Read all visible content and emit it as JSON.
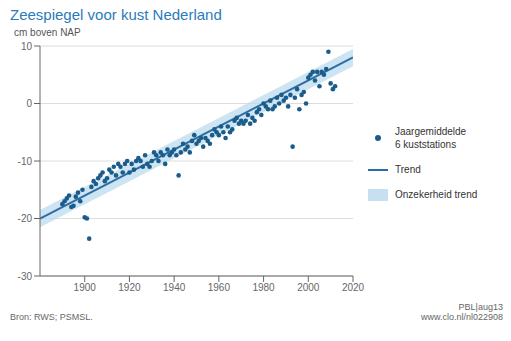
{
  "chart_data": {
    "type": "scatter",
    "title": "Zeespiegel voor kust Nederland",
    "ylabel": "cm boven NAP",
    "xlim": [
      1880,
      2020
    ],
    "ylim": [
      -30,
      10
    ],
    "xticks": [
      1900,
      1920,
      1940,
      1960,
      1980,
      2000,
      2020
    ],
    "yticks": [
      -30,
      -20,
      -10,
      0,
      10
    ],
    "grid": true,
    "legend": "right",
    "annotations": [
      "Bron: RWS; PSMSL.",
      "PBL|aug13\nwww.clo.nl/nl022908"
    ],
    "series": [
      {
        "name": "Jaargemiddelde\n6 kuststations",
        "type": "scatter",
        "color": "#1a5c8a",
        "x": [
          1890,
          1891,
          1892,
          1893,
          1894,
          1895,
          1896,
          1897,
          1898,
          1899,
          1900,
          1901,
          1902,
          1903,
          1904,
          1905,
          1906,
          1907,
          1908,
          1909,
          1910,
          1911,
          1912,
          1913,
          1914,
          1915,
          1916,
          1917,
          1918,
          1919,
          1920,
          1921,
          1922,
          1923,
          1924,
          1925,
          1926,
          1927,
          1928,
          1929,
          1930,
          1931,
          1932,
          1933,
          1934,
          1935,
          1936,
          1937,
          1938,
          1939,
          1940,
          1941,
          1942,
          1943,
          1944,
          1945,
          1946,
          1947,
          1948,
          1949,
          1950,
          1951,
          1952,
          1953,
          1954,
          1955,
          1956,
          1957,
          1958,
          1959,
          1960,
          1961,
          1962,
          1963,
          1964,
          1965,
          1966,
          1967,
          1968,
          1969,
          1970,
          1971,
          1972,
          1973,
          1974,
          1975,
          1976,
          1977,
          1978,
          1979,
          1980,
          1981,
          1982,
          1983,
          1984,
          1985,
          1986,
          1987,
          1988,
          1989,
          1990,
          1991,
          1992,
          1993,
          1994,
          1995,
          1996,
          1997,
          1998,
          1999,
          2000,
          2001,
          2002,
          2003,
          2004,
          2005,
          2006,
          2007,
          2008,
          2009,
          2010,
          2011,
          2012
        ],
        "values": [
          -17.5,
          -17.0,
          -16.5,
          -16.0,
          -18.0,
          -17.8,
          -16.2,
          -15.5,
          -17.0,
          -15.0,
          -19.8,
          -20.0,
          -23.5,
          -14.5,
          -13.5,
          -14.0,
          -13.0,
          -12.5,
          -12.0,
          -13.5,
          -13.0,
          -11.5,
          -12.0,
          -11.0,
          -12.5,
          -10.5,
          -11.0,
          -12.0,
          -10.5,
          -10.0,
          -12.0,
          -10.5,
          -11.5,
          -10.0,
          -9.5,
          -10.0,
          -11.0,
          -9.0,
          -10.5,
          -11.0,
          -10.0,
          -8.5,
          -9.0,
          -10.0,
          -8.5,
          -9.0,
          -10.5,
          -8.0,
          -9.0,
          -8.5,
          -8.0,
          -9.0,
          -12.5,
          -8.5,
          -7.0,
          -8.0,
          -7.5,
          -8.5,
          -6.5,
          -5.5,
          -7.0,
          -6.5,
          -6.0,
          -7.5,
          -6.0,
          -6.5,
          -7.0,
          -5.5,
          -4.5,
          -5.0,
          -5.5,
          -4.0,
          -5.0,
          -6.0,
          -4.0,
          -5.0,
          -4.5,
          -3.0,
          -2.5,
          -3.5,
          -3.0,
          -3.5,
          -3.0,
          -2.0,
          -3.5,
          -2.5,
          -3.0,
          -1.5,
          -1.0,
          -2.0,
          0.0,
          -0.5,
          -1.0,
          0.5,
          -1.0,
          -0.5,
          1.0,
          0.0,
          1.5,
          0.5,
          1.0,
          -0.5,
          1.5,
          -7.5,
          1.0,
          2.5,
          -1.0,
          1.5,
          2.0,
          0.0,
          4.5,
          5.0,
          5.5,
          4.0,
          5.5,
          3.0,
          5.5,
          5.0,
          6.0,
          9.0,
          3.5,
          2.5,
          3.0
        ]
      },
      {
        "name": "Trend",
        "type": "line",
        "color": "#2e6da4",
        "x": [
          1880,
          2020
        ],
        "values": [
          -20,
          8
        ]
      },
      {
        "name": "Onzekerheid trend",
        "type": "area",
        "color": "#b8d8ee",
        "x": [
          1880,
          2020
        ],
        "lower": [
          -21.5,
          6.5
        ],
        "upper": [
          -18.5,
          9.5
        ]
      }
    ]
  }
}
